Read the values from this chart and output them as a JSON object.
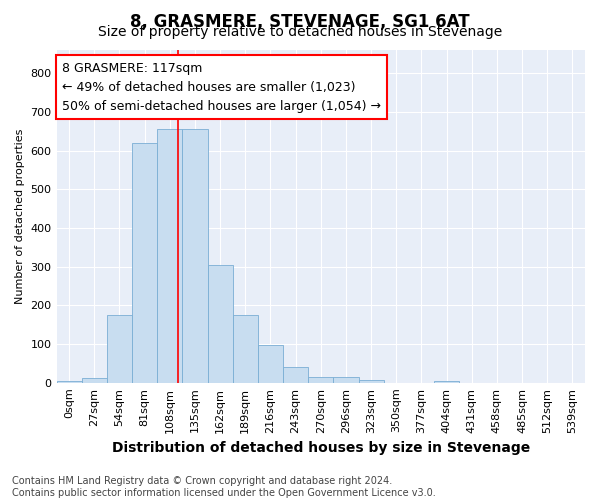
{
  "title": "8, GRASMERE, STEVENAGE, SG1 6AT",
  "subtitle": "Size of property relative to detached houses in Stevenage",
  "xlabel": "Distribution of detached houses by size in Stevenage",
  "ylabel": "Number of detached properties",
  "bar_color": "#c8ddf0",
  "bar_edge_color": "#7aaed4",
  "categories": [
    "0sqm",
    "27sqm",
    "54sqm",
    "81sqm",
    "108sqm",
    "135sqm",
    "162sqm",
    "189sqm",
    "216sqm",
    "243sqm",
    "270sqm",
    "296sqm",
    "323sqm",
    "350sqm",
    "377sqm",
    "404sqm",
    "431sqm",
    "458sqm",
    "485sqm",
    "512sqm",
    "539sqm"
  ],
  "values": [
    5,
    13,
    175,
    620,
    655,
    655,
    305,
    175,
    98,
    40,
    14,
    14,
    8,
    0,
    0,
    5,
    0,
    0,
    0,
    0,
    0
  ],
  "ylim": [
    0,
    860
  ],
  "yticks": [
    0,
    100,
    200,
    300,
    400,
    500,
    600,
    700,
    800
  ],
  "vline_x_index": 4.33,
  "annotation_text": "8 GRASMERE: 117sqm\n← 49% of detached houses are smaller (1,023)\n50% of semi-detached houses are larger (1,054) →",
  "bg_color": "#e8eef8",
  "footer_text": "Contains HM Land Registry data © Crown copyright and database right 2024.\nContains public sector information licensed under the Open Government Licence v3.0.",
  "title_fontsize": 12,
  "subtitle_fontsize": 10,
  "annotation_fontsize": 9,
  "footer_fontsize": 7,
  "xlabel_fontsize": 10,
  "ylabel_fontsize": 8,
  "tick_fontsize": 8
}
